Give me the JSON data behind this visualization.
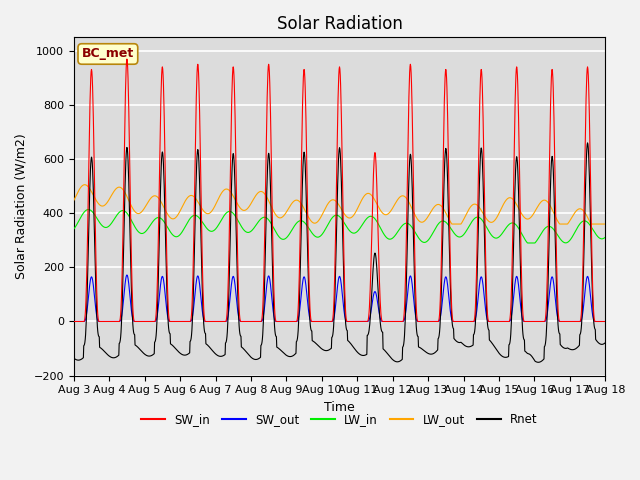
{
  "title": "Solar Radiation",
  "ylabel": "Solar Radiation (W/m2)",
  "xlabel": "Time",
  "ylim": [
    -200,
    1050
  ],
  "yticks": [
    -200,
    0,
    200,
    400,
    600,
    800,
    1000
  ],
  "xtick_labels": [
    "Aug 3",
    "Aug 4",
    "Aug 5",
    "Aug 6",
    "Aug 7",
    "Aug 8",
    "Aug 9",
    "Aug 10",
    "Aug 11",
    "Aug 12",
    "Aug 13",
    "Aug 14",
    "Aug 15",
    "Aug 16",
    "Aug 17",
    "Aug 18"
  ],
  "colors": {
    "SW_in": "#ff0000",
    "SW_out": "#0000ff",
    "LW_in": "#00ee00",
    "LW_out": "#ffa500",
    "Rnet": "#000000"
  },
  "annotation_text": "BC_met",
  "bg_color": "#dcdcdc",
  "grid_color": "#ffffff",
  "title_fontsize": 12,
  "axis_label_fontsize": 9,
  "tick_fontsize": 8,
  "fig_facecolor": "#f2f2f2"
}
